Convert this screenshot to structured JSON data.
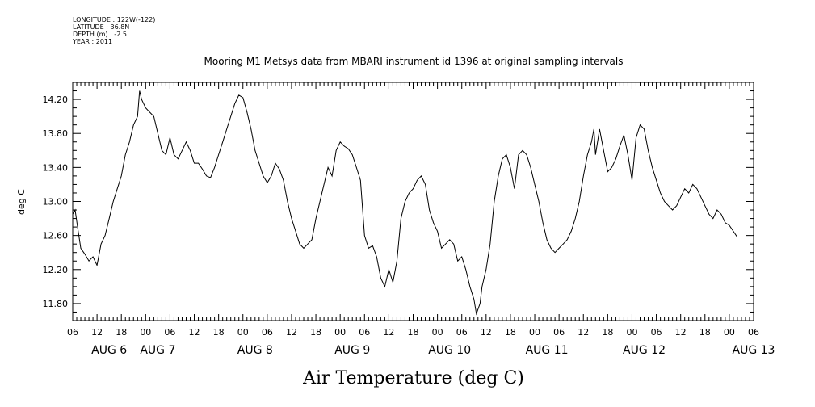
{
  "meta": {
    "longitude": "LONGITUDE : 122W(-122)",
    "latitude": "LATITUDE : 36.8N",
    "depth": "DEPTH (m) : -2.5",
    "year": "YEAR : 2011"
  },
  "chart_data": {
    "type": "line",
    "title": "Mooring M1 Metsys data from MBARI instrument id 1396 at original sampling intervals",
    "xlabel": "Air Temperature (deg C)",
    "ylabel": "deg C",
    "ylim": [
      11.6,
      14.4
    ],
    "y_ticks": [
      "11.80",
      "12.20",
      "12.60",
      "13.00",
      "13.40",
      "13.80",
      "14.20"
    ],
    "xlim_hours": [
      0,
      168
    ],
    "x_tick_labels": [
      "06",
      "12",
      "18",
      "00",
      "06",
      "12",
      "18",
      "00",
      "06",
      "12",
      "18",
      "00",
      "06",
      "12",
      "18",
      "00",
      "06",
      "12",
      "18",
      "00",
      "06",
      "12",
      "18",
      "00",
      "06",
      "12",
      "18",
      "00",
      "06"
    ],
    "day_labels": [
      "AUG 6",
      "AUG 7",
      "AUG 8",
      "AUG 9",
      "AUG 10",
      "AUG 11",
      "AUG 12",
      "AUG 13"
    ],
    "series": [
      {
        "values": [
          [
            0,
            12.85
          ],
          [
            0.6,
            12.9
          ],
          [
            1.2,
            12.7
          ],
          [
            2,
            12.45
          ],
          [
            3,
            12.38
          ],
          [
            4,
            12.3
          ],
          [
            5,
            12.35
          ],
          [
            6,
            12.25
          ],
          [
            7,
            12.5
          ],
          [
            8,
            12.6
          ],
          [
            9,
            12.8
          ],
          [
            10,
            13.0
          ],
          [
            11,
            13.15
          ],
          [
            12,
            13.3
          ],
          [
            13,
            13.55
          ],
          [
            14,
            13.7
          ],
          [
            15,
            13.9
          ],
          [
            16,
            14.0
          ],
          [
            16.5,
            14.3
          ],
          [
            17,
            14.2
          ],
          [
            18,
            14.1
          ],
          [
            19,
            14.05
          ],
          [
            20,
            14.0
          ],
          [
            21,
            13.8
          ],
          [
            22,
            13.6
          ],
          [
            23,
            13.55
          ],
          [
            24,
            13.75
          ],
          [
            25,
            13.55
          ],
          [
            26,
            13.5
          ],
          [
            27,
            13.6
          ],
          [
            28,
            13.7
          ],
          [
            29,
            13.6
          ],
          [
            30,
            13.45
          ],
          [
            31,
            13.45
          ],
          [
            32,
            13.38
          ],
          [
            33,
            13.3
          ],
          [
            34,
            13.28
          ],
          [
            35,
            13.4
          ],
          [
            36,
            13.55
          ],
          [
            37,
            13.7
          ],
          [
            38,
            13.85
          ],
          [
            39,
            14.0
          ],
          [
            40,
            14.15
          ],
          [
            41,
            14.25
          ],
          [
            42,
            14.22
          ],
          [
            43,
            14.05
          ],
          [
            44,
            13.85
          ],
          [
            45,
            13.6
          ],
          [
            46,
            13.45
          ],
          [
            47,
            13.3
          ],
          [
            48,
            13.22
          ],
          [
            49,
            13.3
          ],
          [
            50,
            13.45
          ],
          [
            51,
            13.38
          ],
          [
            52,
            13.25
          ],
          [
            53,
            13.0
          ],
          [
            54,
            12.8
          ],
          [
            55,
            12.65
          ],
          [
            56,
            12.5
          ],
          [
            57,
            12.45
          ],
          [
            58,
            12.5
          ],
          [
            59,
            12.55
          ],
          [
            60,
            12.8
          ],
          [
            61,
            13.0
          ],
          [
            62,
            13.2
          ],
          [
            63,
            13.4
          ],
          [
            64,
            13.3
          ],
          [
            65,
            13.6
          ],
          [
            66,
            13.7
          ],
          [
            67,
            13.65
          ],
          [
            68,
            13.62
          ],
          [
            69,
            13.55
          ],
          [
            70,
            13.4
          ],
          [
            71,
            13.25
          ],
          [
            72,
            12.6
          ],
          [
            73,
            12.45
          ],
          [
            74,
            12.48
          ],
          [
            75,
            12.35
          ],
          [
            76,
            12.1
          ],
          [
            77,
            12.0
          ],
          [
            78,
            12.2
          ],
          [
            79,
            12.05
          ],
          [
            80,
            12.3
          ],
          [
            81,
            12.8
          ],
          [
            82,
            13.0
          ],
          [
            83,
            13.1
          ],
          [
            84,
            13.15
          ],
          [
            85,
            13.25
          ],
          [
            86,
            13.3
          ],
          [
            87,
            13.2
          ],
          [
            88,
            12.9
          ],
          [
            89,
            12.75
          ],
          [
            90,
            12.65
          ],
          [
            91,
            12.45
          ],
          [
            92,
            12.5
          ],
          [
            93,
            12.55
          ],
          [
            94,
            12.5
          ],
          [
            95,
            12.3
          ],
          [
            96,
            12.35
          ],
          [
            97,
            12.2
          ],
          [
            98,
            12.0
          ],
          [
            99,
            11.85
          ],
          [
            99.6,
            11.68
          ],
          [
            100.5,
            11.8
          ],
          [
            101,
            12.0
          ],
          [
            102,
            12.2
          ],
          [
            103,
            12.5
          ],
          [
            104,
            13.0
          ],
          [
            105,
            13.3
          ],
          [
            106,
            13.5
          ],
          [
            107,
            13.55
          ],
          [
            108,
            13.4
          ],
          [
            109,
            13.15
          ],
          [
            110,
            13.55
          ],
          [
            111,
            13.6
          ],
          [
            112,
            13.55
          ],
          [
            113,
            13.4
          ],
          [
            114,
            13.2
          ],
          [
            115,
            13.0
          ],
          [
            116,
            12.75
          ],
          [
            117,
            12.55
          ],
          [
            118,
            12.45
          ],
          [
            119,
            12.4
          ],
          [
            120,
            12.45
          ],
          [
            121,
            12.5
          ],
          [
            122,
            12.55
          ],
          [
            123,
            12.65
          ],
          [
            124,
            12.8
          ],
          [
            125,
            13.0
          ],
          [
            126,
            13.3
          ],
          [
            127,
            13.55
          ],
          [
            128,
            13.7
          ],
          [
            128.6,
            13.85
          ],
          [
            129,
            13.55
          ],
          [
            130,
            13.85
          ],
          [
            131,
            13.6
          ],
          [
            132,
            13.35
          ],
          [
            133,
            13.4
          ],
          [
            134,
            13.5
          ],
          [
            135,
            13.65
          ],
          [
            136,
            13.78
          ],
          [
            137,
            13.55
          ],
          [
            138,
            13.25
          ],
          [
            139,
            13.75
          ],
          [
            140,
            13.9
          ],
          [
            141,
            13.85
          ],
          [
            142,
            13.6
          ],
          [
            143,
            13.4
          ],
          [
            144,
            13.25
          ],
          [
            145,
            13.1
          ],
          [
            146,
            13.0
          ],
          [
            147,
            12.95
          ],
          [
            148,
            12.9
          ],
          [
            149,
            12.95
          ],
          [
            150,
            13.05
          ],
          [
            151,
            13.15
          ],
          [
            152,
            13.1
          ],
          [
            153,
            13.2
          ],
          [
            154,
            13.15
          ],
          [
            155,
            13.05
          ],
          [
            156,
            12.95
          ],
          [
            157,
            12.85
          ],
          [
            158,
            12.8
          ],
          [
            159,
            12.9
          ],
          [
            160,
            12.85
          ],
          [
            161,
            12.75
          ],
          [
            162,
            12.72
          ],
          [
            163,
            12.65
          ],
          [
            164,
            12.58
          ]
        ]
      }
    ]
  }
}
